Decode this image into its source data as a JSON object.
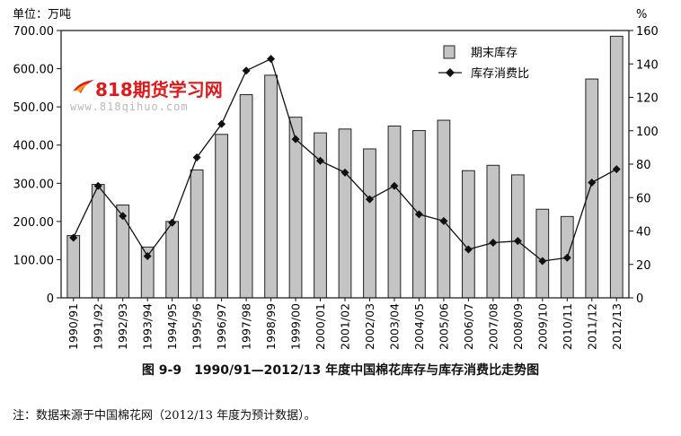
{
  "chart_data": {
    "type": "bar+line",
    "left_unit_label": "单位：万吨",
    "right_unit_label": "%",
    "categories": [
      "1990/91",
      "1991/92",
      "1992/93",
      "1993/94",
      "1994/95",
      "1995/96",
      "1996/97",
      "1997/98",
      "1998/99",
      "1999/00",
      "2000/01",
      "2001/02",
      "2002/03",
      "2003/04",
      "2004/05",
      "2005/06",
      "2006/07",
      "2007/08",
      "2008/09",
      "2009/10",
      "2010/11",
      "2011/12",
      "2012/13"
    ],
    "left_axis": {
      "min": 0,
      "max": 700,
      "ticks": [
        "0",
        "100.00",
        "200.00",
        "300.00",
        "400.00",
        "500.00",
        "600.00",
        "700.00"
      ]
    },
    "right_axis": {
      "min": 0,
      "max": 160,
      "ticks": [
        "0",
        "20",
        "40",
        "60",
        "80",
        "100",
        "120",
        "140",
        "160"
      ]
    },
    "series": [
      {
        "name": "期末库存",
        "kind": "bar",
        "axis": "left",
        "values": [
          163,
          297,
          243,
          133,
          200,
          335,
          428,
          532,
          583,
          473,
          432,
          442,
          390,
          450,
          438,
          465,
          333,
          347,
          322,
          232,
          213,
          573,
          685
        ]
      },
      {
        "name": "库存消费比",
        "kind": "line",
        "axis": "right",
        "values": [
          36,
          67,
          49,
          25,
          45,
          84,
          104,
          136,
          143,
          95,
          82,
          75,
          59,
          67,
          50,
          46,
          29,
          33,
          34,
          22,
          24,
          69,
          77
        ]
      }
    ],
    "legend_position": "top-right",
    "caption": "图 9-9　1990/91—2012/13 年度中国棉花库存与库存消费比走势图"
  },
  "note": "注：数据来源于中国棉花网（2012/13 年度为预计数据）。",
  "watermark": {
    "title": "818期货学习网",
    "url": "www.818qihuo.com",
    "logo_icon": "flame-swoosh-icon"
  },
  "colors": {
    "bar_fill": "#c4c4c4",
    "bar_stroke": "#222222",
    "line": "#111111",
    "watermark": "#e0191b"
  }
}
